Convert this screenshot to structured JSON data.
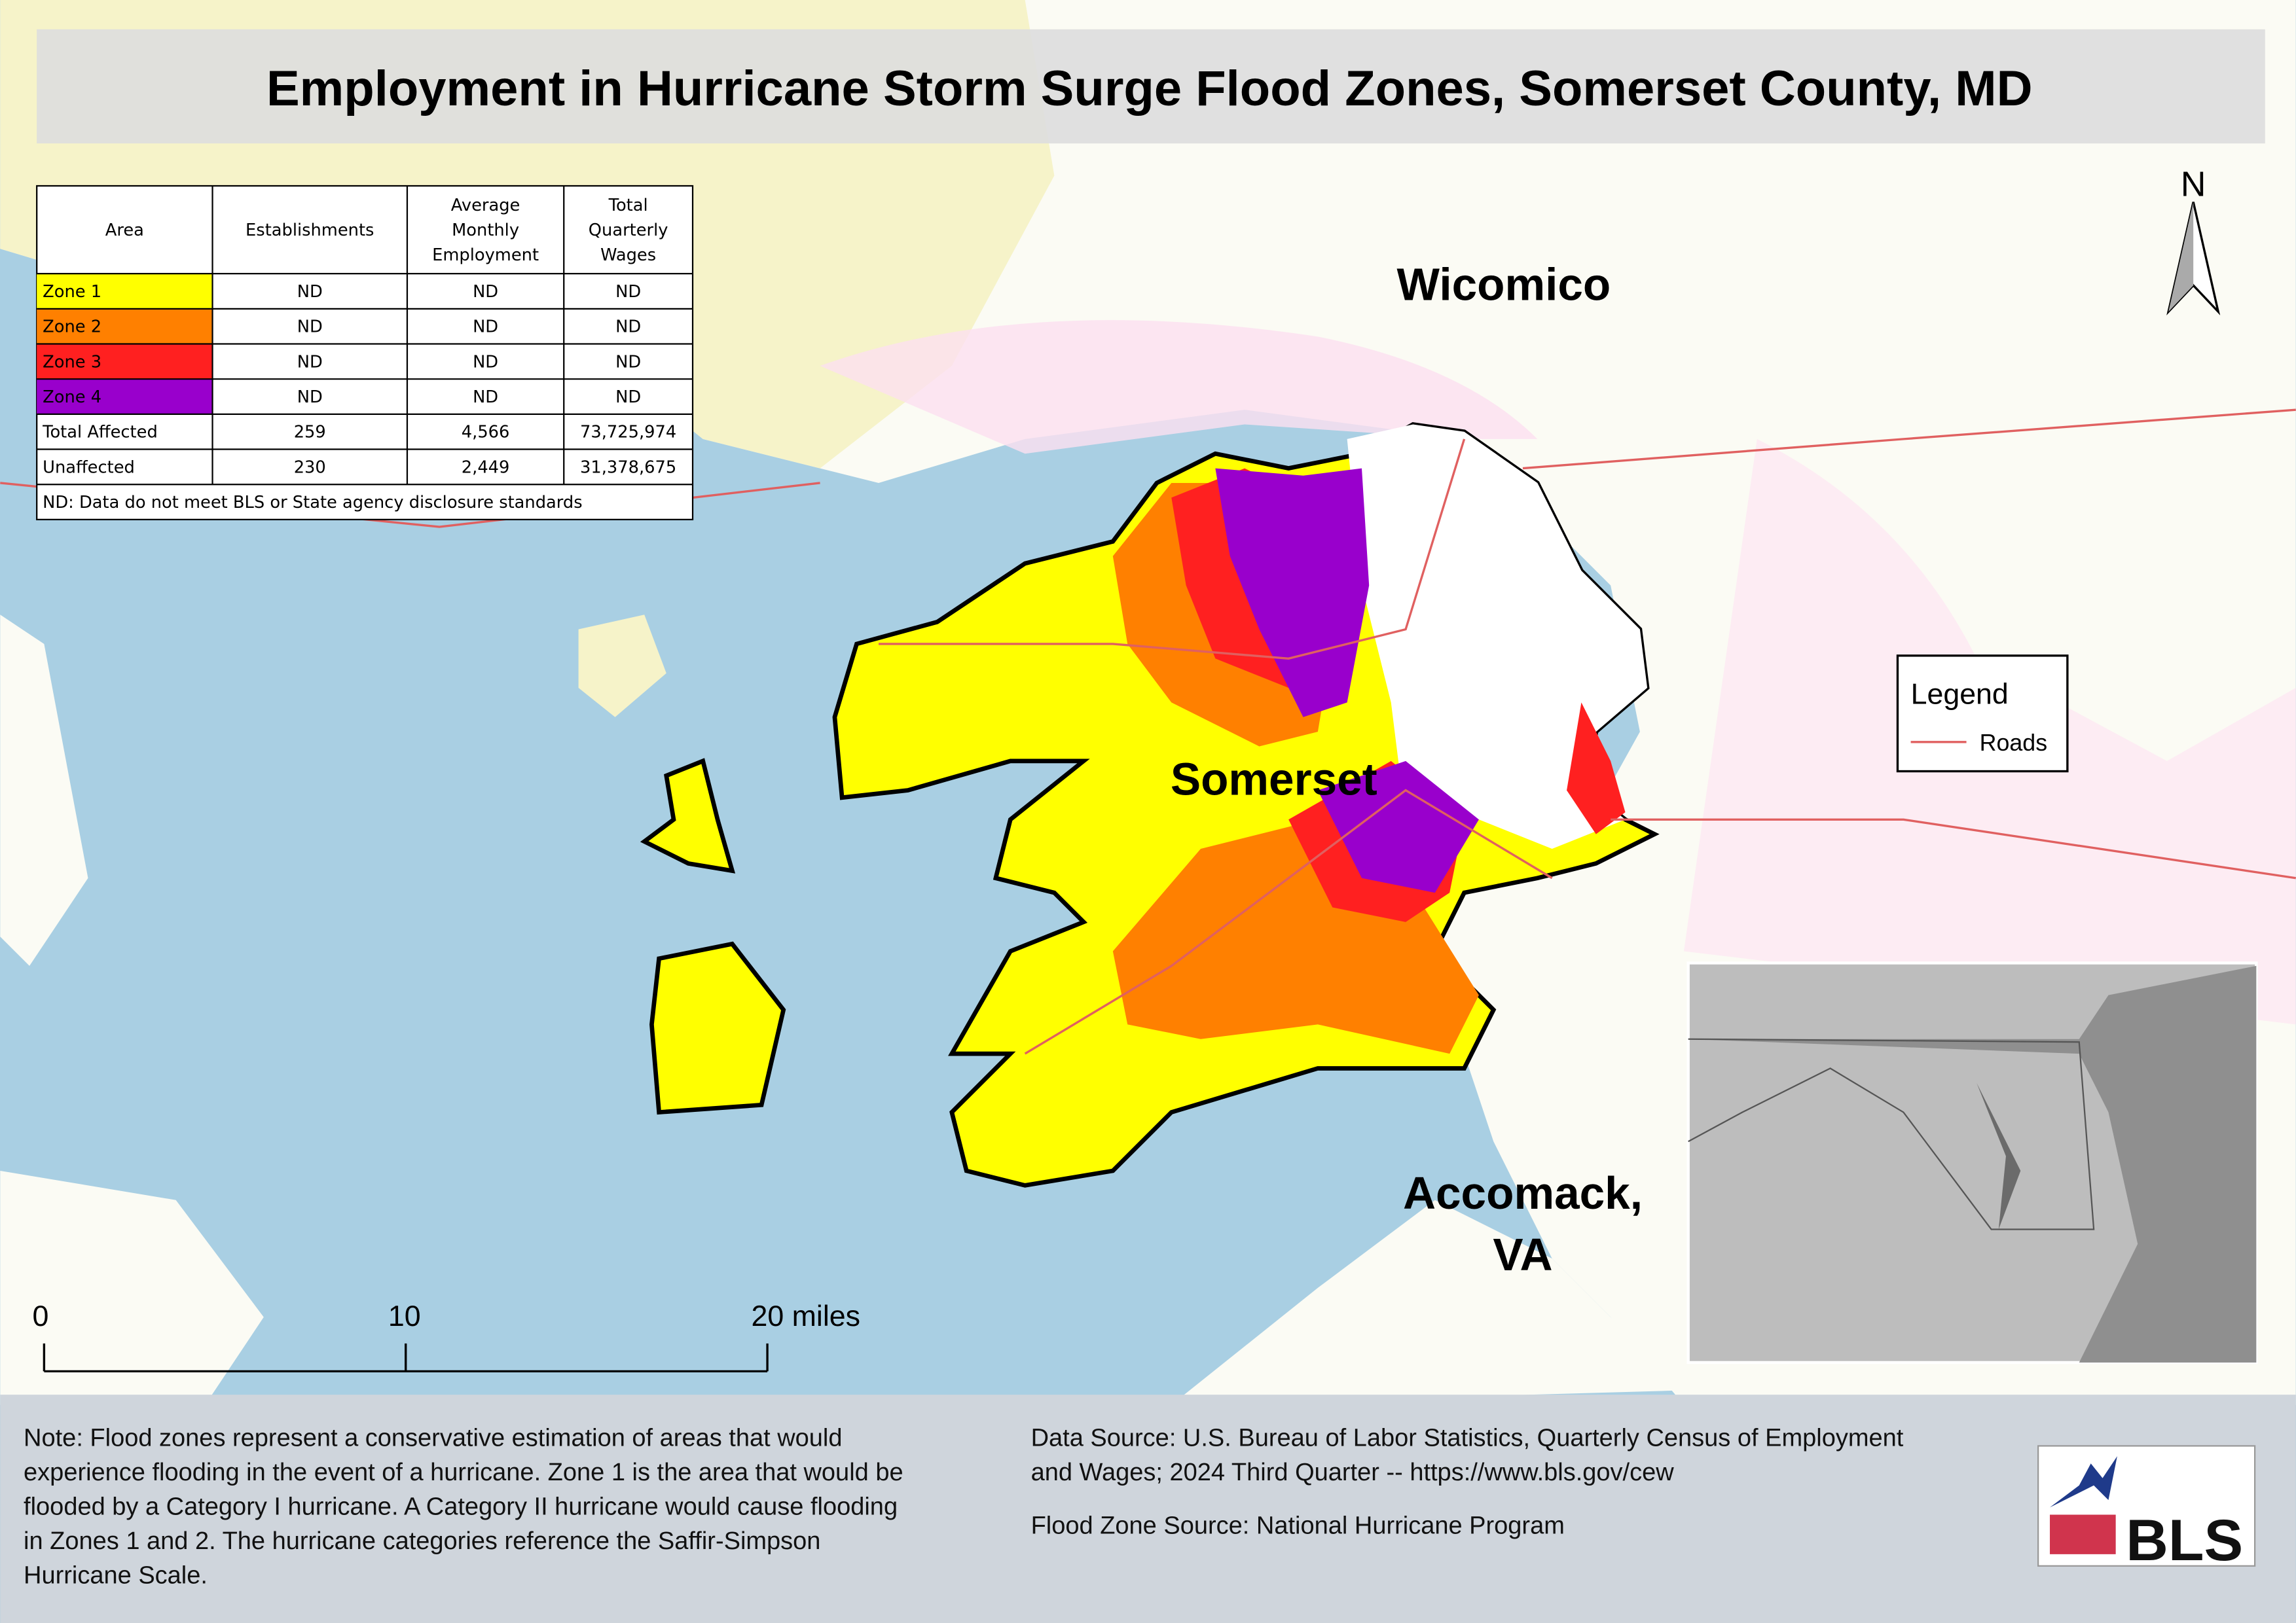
{
  "title": "Employment in Hurricane Storm Surge Flood Zones, Somerset County, MD",
  "table": {
    "header": [
      "Area",
      "Establishments",
      "Average Monthly Employment",
      "Total Quarterly Wages"
    ],
    "rows": [
      [
        "Zone 1",
        "ND",
        "ND",
        "ND"
      ],
      [
        "Zone 2",
        "ND",
        "ND",
        "ND"
      ],
      [
        "Zone 3",
        "ND",
        "ND",
        "ND"
      ],
      [
        "Zone 4",
        "ND",
        "ND",
        "ND"
      ],
      [
        "Total Affected",
        "259",
        "4,566",
        "73,725,974"
      ],
      [
        "Unaffected",
        "230",
        "2,449",
        "31,378,675"
      ]
    ],
    "zone_colors": [
      "#ffff00",
      "#ff8000",
      "#ff2020",
      "#9900cc"
    ],
    "footnote": "ND: Data do not meet BLS or State agency disclosure standards"
  },
  "places": {
    "wicomico": "Wicomico",
    "somerset": "Somerset",
    "accomack": [
      "Accomack,",
      "VA"
    ]
  },
  "north": "N",
  "legend": {
    "title": "Legend",
    "items": [
      {
        "label": "Roads",
        "color": "#e06060"
      }
    ]
  },
  "scale_bar": {
    "labels": [
      "0",
      "10",
      "20 miles"
    ]
  },
  "note": [
    "Note: Flood zones represent a conservative estimation of areas that would",
    "experience flooding in the event of a hurricane. Zone 1 is the area that would be",
    "flooded by a Category I hurricane. A Category II hurricane would cause flooding",
    "in Zones 1 and 2. The hurricane categories reference the Saffir-Simpson",
    "Hurricane Scale."
  ],
  "sources": [
    "Data Source: U.S. Bureau of Labor Statistics, Quarterly Census of Employment",
    "and Wages; 2024 Third Quarter -- https://www.bls.gov/cew",
    "Flood Zone Source: National Hurricane Program"
  ],
  "logo": "BLS"
}
